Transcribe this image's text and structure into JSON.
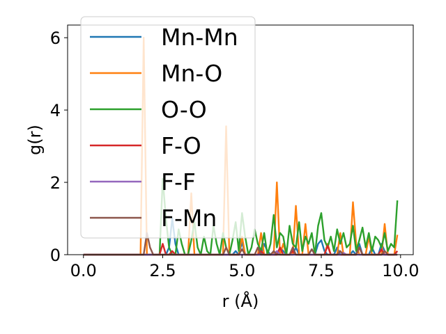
{
  "chart_data": {
    "type": "line",
    "xlabel": "r (Å)",
    "ylabel": "g(r)",
    "xlim": [
      -0.5,
      10.4
    ],
    "ylim": [
      0,
      6.35
    ],
    "xticks": [
      0.0,
      2.5,
      5.0,
      7.5,
      10.0
    ],
    "xtick_labels": [
      "0.0",
      "2.5",
      "5.0",
      "7.5",
      "10.0"
    ],
    "yticks": [
      0,
      2,
      4,
      6
    ],
    "ytick_labels": [
      "0",
      "2",
      "4",
      "6"
    ],
    "grid": false,
    "legend_position": "upper-left",
    "legend_labels": [
      "Mn-Mn",
      "Mn-O",
      "O-O",
      "F-O",
      "F-F",
      "F-Mn"
    ],
    "x": [
      0.0,
      0.1,
      0.2,
      0.3,
      0.4,
      0.5,
      0.6,
      0.7,
      0.8,
      0.9,
      1.0,
      1.1,
      1.2,
      1.3,
      1.4,
      1.5,
      1.6,
      1.7,
      1.8,
      1.9,
      2.0,
      2.1,
      2.2,
      2.3,
      2.4,
      2.5,
      2.6,
      2.7,
      2.8,
      2.9,
      3.0,
      3.1,
      3.2,
      3.3,
      3.4,
      3.5,
      3.6,
      3.7,
      3.8,
      3.9,
      4.0,
      4.1,
      4.2,
      4.3,
      4.4,
      4.5,
      4.6,
      4.7,
      4.8,
      4.9,
      5.0,
      5.1,
      5.2,
      5.3,
      5.4,
      5.5,
      5.6,
      5.7,
      5.8,
      5.9,
      6.0,
      6.1,
      6.2,
      6.3,
      6.4,
      6.5,
      6.6,
      6.7,
      6.8,
      6.9,
      7.0,
      7.1,
      7.2,
      7.3,
      7.4,
      7.5,
      7.6,
      7.7,
      7.8,
      7.9,
      8.0,
      8.1,
      8.2,
      8.3,
      8.4,
      8.5,
      8.6,
      8.7,
      8.8,
      8.9,
      9.0,
      9.1,
      9.2,
      9.3,
      9.4,
      9.5,
      9.6,
      9.7,
      9.8,
      9.9
    ],
    "series": [
      {
        "name": "Mn-Mn",
        "color": "#1f77b4",
        "values": [
          0,
          0,
          0,
          0,
          0,
          0,
          0,
          0,
          0,
          0,
          0,
          0,
          0,
          0,
          0,
          0,
          0,
          0,
          0,
          0,
          0,
          0,
          0,
          0,
          0,
          0,
          0,
          0.2,
          1.0,
          0.3,
          0,
          0,
          0,
          0,
          0,
          0,
          0,
          0,
          0,
          0,
          0,
          0,
          0,
          0,
          0,
          0,
          0,
          0,
          0.1,
          0,
          0.35,
          0,
          0,
          0,
          0,
          0,
          0,
          0.3,
          0.1,
          0,
          0,
          0,
          0.2,
          0.1,
          0,
          0,
          0,
          0.2,
          0,
          0,
          0,
          0,
          0.15,
          0,
          0.3,
          0.4,
          0.1,
          0,
          0,
          0,
          0.2,
          0,
          0,
          0,
          0,
          0.1,
          0,
          0.3,
          0,
          0,
          0,
          0.2,
          0,
          0,
          0.3,
          0.1,
          0,
          0,
          0,
          0.1
        ]
      },
      {
        "name": "Mn-O",
        "color": "#ff7f0e",
        "values": [
          0,
          0,
          0,
          0,
          0,
          0,
          0,
          0,
          0,
          0,
          0,
          0,
          0,
          0,
          0,
          0,
          0,
          0,
          0,
          6.0,
          0,
          0,
          0,
          0,
          0,
          0,
          0,
          0,
          0,
          0,
          0,
          0,
          0,
          0,
          1.7,
          0,
          0,
          0,
          0,
          0,
          0,
          0,
          0,
          0,
          0,
          3.55,
          0,
          0,
          0,
          0,
          0.5,
          0,
          0,
          0,
          0,
          0,
          0.6,
          0,
          0,
          0,
          0,
          2.0,
          0,
          0.3,
          0,
          0,
          0,
          1.35,
          0,
          0,
          0.85,
          0,
          0,
          0,
          0,
          0,
          0,
          0.3,
          0,
          0,
          0,
          0.6,
          0,
          0,
          0,
          1.45,
          0.3,
          0,
          0,
          0,
          0.5,
          0,
          0,
          0,
          0,
          0.85,
          0,
          0,
          0,
          0.55
        ]
      },
      {
        "name": "O-O",
        "color": "#2ca02c",
        "values": [
          0,
          0,
          0,
          0,
          0,
          0,
          0,
          0,
          0,
          0,
          0,
          0,
          0,
          0,
          0,
          0,
          0,
          0,
          0,
          0,
          0,
          0,
          0,
          0,
          0,
          2.1,
          1.0,
          0.2,
          0,
          0,
          0.7,
          0.3,
          0,
          0,
          0.4,
          0.9,
          0.2,
          0,
          0.5,
          0.1,
          0,
          0.8,
          0.3,
          0,
          0.6,
          0.2,
          0,
          0.4,
          0.9,
          0.1,
          1.15,
          0.5,
          0,
          0.2,
          0.7,
          0.3,
          0.1,
          0.6,
          0,
          0.3,
          1.1,
          0.2,
          0.6,
          0.5,
          0,
          0.8,
          0.3,
          0.2,
          0.9,
          0.1,
          0.5,
          0.3,
          0.6,
          0,
          0.8,
          1.15,
          0.4,
          0.2,
          0.5,
          0.1,
          0.7,
          0.3,
          0.6,
          0.2,
          0.3,
          0.8,
          0.1,
          0.4,
          0.75,
          0.2,
          0.6,
          0.1,
          0.5,
          0.4,
          0.2,
          0.6,
          0.1,
          0.3,
          0.2,
          1.5
        ]
      },
      {
        "name": "F-O",
        "color": "#d62728",
        "values": [
          0,
          0,
          0,
          0,
          0,
          0,
          0,
          0,
          0,
          0,
          0,
          0,
          0,
          0,
          0,
          0,
          0,
          0,
          0,
          0,
          0,
          0,
          0,
          0,
          0,
          0.3,
          0,
          0,
          0.1,
          0,
          0,
          0,
          0,
          0,
          0,
          0,
          0,
          0,
          0,
          0,
          0,
          0,
          0,
          0,
          0,
          0,
          0,
          0,
          0,
          0,
          0,
          0,
          0,
          0,
          0,
          0,
          0.1,
          0,
          0,
          0,
          0,
          0,
          0.2,
          0,
          0,
          0,
          0.1,
          0,
          0,
          0,
          0,
          0,
          0,
          0,
          0,
          0,
          0,
          0.25,
          0,
          0,
          0,
          0,
          0,
          0,
          0,
          0,
          0,
          0.2,
          0,
          0,
          0,
          0,
          0,
          0,
          0.15,
          0,
          0,
          0,
          0,
          0.1
        ]
      },
      {
        "name": "F-F",
        "color": "#9467bd",
        "values": [
          0,
          0,
          0,
          0,
          0,
          0,
          0,
          0,
          0,
          0,
          0,
          0,
          0,
          0,
          0,
          0,
          0,
          0,
          0,
          0,
          0,
          0,
          0,
          0,
          0,
          0,
          0,
          0,
          0,
          0,
          0,
          0,
          0,
          0,
          0,
          0,
          0,
          0,
          0,
          0,
          0,
          0,
          0,
          0,
          0,
          0,
          0,
          0,
          0,
          0,
          0,
          0,
          0,
          0,
          0,
          0,
          0,
          0,
          0,
          0,
          0,
          0.1,
          0,
          0,
          0,
          0,
          0,
          0,
          0,
          0,
          0,
          0,
          0,
          0,
          0,
          0,
          0,
          0,
          0,
          0,
          0,
          0,
          0.05,
          0,
          0,
          0,
          0,
          0,
          0,
          0,
          0,
          0,
          0,
          0,
          0,
          0,
          0,
          0,
          0,
          0
        ]
      },
      {
        "name": "F-Mn",
        "color": "#8c564b",
        "values": [
          0,
          0,
          0,
          0,
          0,
          0,
          0,
          0,
          0,
          0,
          0,
          0,
          0,
          0,
          0,
          0,
          0,
          0,
          0,
          0,
          0.6,
          0.2,
          0,
          0,
          0,
          0,
          0,
          0,
          0,
          0,
          0,
          0,
          0,
          0,
          0,
          0,
          0,
          0,
          0,
          0,
          0,
          0,
          0,
          0,
          0,
          0.2,
          0,
          0,
          0,
          0,
          0.15,
          0,
          0,
          0,
          0,
          0.2,
          0,
          0,
          0,
          0,
          0.1,
          0,
          0,
          0,
          0,
          0,
          0.2,
          0,
          0,
          0,
          0,
          0,
          0.15,
          0,
          0,
          0,
          0,
          0,
          0,
          0,
          0,
          0.1,
          0,
          0,
          0,
          0,
          0,
          0.2,
          0,
          0,
          0,
          0,
          0,
          0,
          0,
          0.1,
          0,
          0,
          0,
          0
        ]
      }
    ]
  }
}
